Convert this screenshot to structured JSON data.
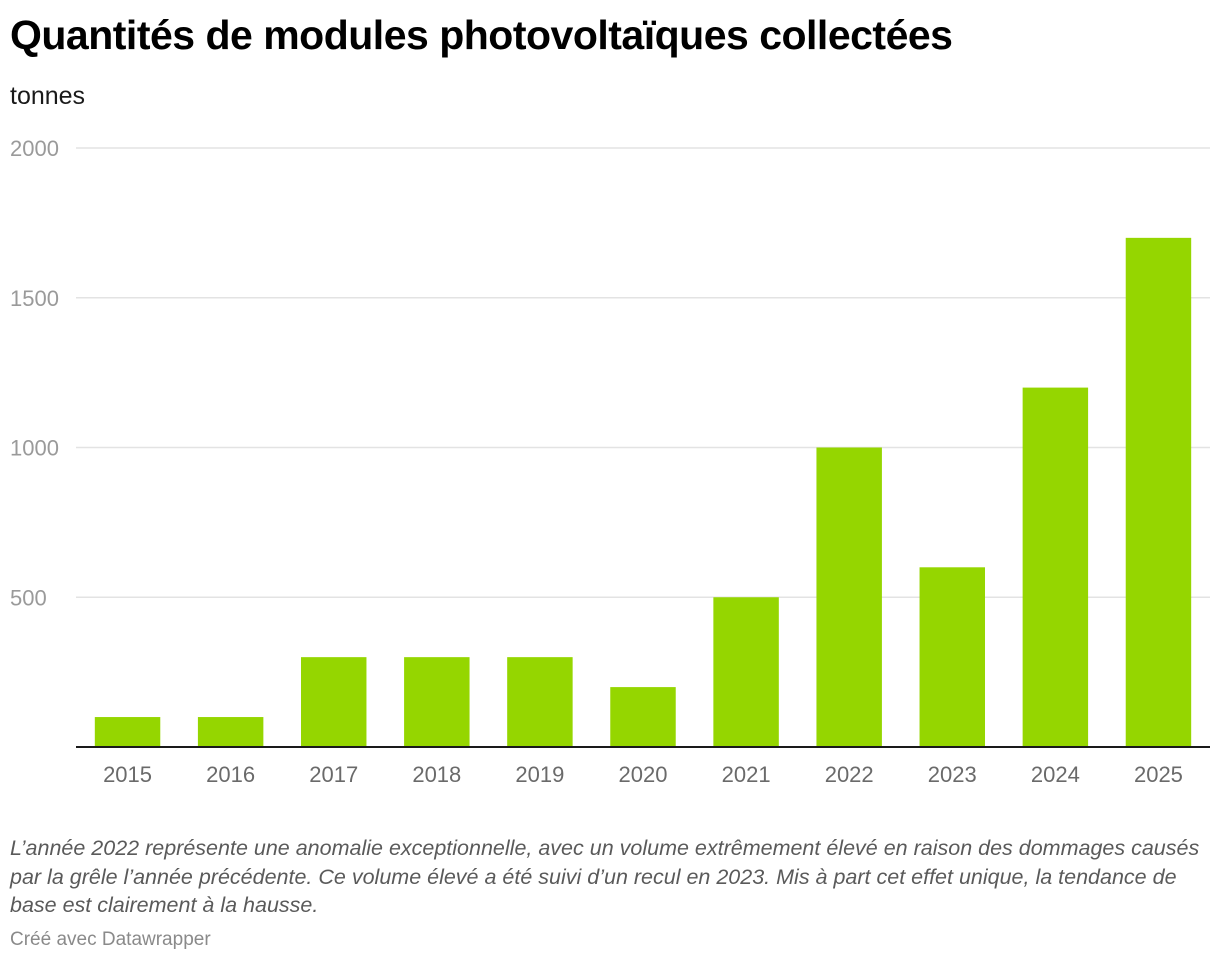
{
  "header": {
    "title": "Quantités de modules photovoltaïques collectées",
    "subtitle": "tonnes"
  },
  "chart_data": {
    "type": "bar",
    "title": "Quantités de modules photovoltaïques collectées",
    "ylabel": "tonnes",
    "xlabel": "",
    "categories": [
      "2015",
      "2016",
      "2017",
      "2018",
      "2019",
      "2020",
      "2021",
      "2022",
      "2023",
      "2024",
      "2025"
    ],
    "values": [
      100,
      100,
      300,
      300,
      300,
      200,
      500,
      1000,
      600,
      1200,
      1700
    ],
    "ylim": [
      0,
      2000
    ],
    "yticks": [
      500,
      1000,
      1500,
      2000
    ],
    "grid": true,
    "legend": "none",
    "bar_color": "#95d600"
  },
  "footer": {
    "note": "L’année 2022 représente une anomalie exceptionnelle, avec un volume extrêmement élevé en raison des dommages causés par la grêle l’année précédente. Ce volume élevé a été suivi d’un recul en 2023. Mis à part cet effet unique, la tendance de base est clairement à la hausse.",
    "credit": "Créé avec Datawrapper"
  }
}
